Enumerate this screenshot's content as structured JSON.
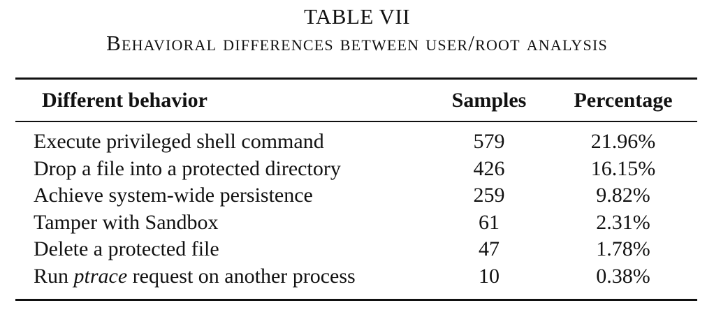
{
  "table": {
    "label": "TABLE VII",
    "caption": "Behavioral differences between user/root analysis",
    "headers": {
      "behavior": "Different behavior",
      "samples": "Samples",
      "percentage": "Percentage"
    },
    "rows": [
      {
        "behavior_pre": "Execute privileged shell command",
        "behavior_em": "",
        "behavior_post": "",
        "samples": "579",
        "percentage": "21.96%"
      },
      {
        "behavior_pre": "Drop a file into a protected directory",
        "behavior_em": "",
        "behavior_post": "",
        "samples": "426",
        "percentage": "16.15%"
      },
      {
        "behavior_pre": "Achieve system-wide persistence",
        "behavior_em": "",
        "behavior_post": "",
        "samples": "259",
        "percentage": "9.82%"
      },
      {
        "behavior_pre": "Tamper with Sandbox",
        "behavior_em": "",
        "behavior_post": "",
        "samples": "61",
        "percentage": "2.31%"
      },
      {
        "behavior_pre": "Delete a protected file",
        "behavior_em": "",
        "behavior_post": "",
        "samples": "47",
        "percentage": "1.78%"
      },
      {
        "behavior_pre": "Run ",
        "behavior_em": "ptrace",
        "behavior_post": " request on another process",
        "samples": "10",
        "percentage": "0.38%"
      }
    ]
  }
}
